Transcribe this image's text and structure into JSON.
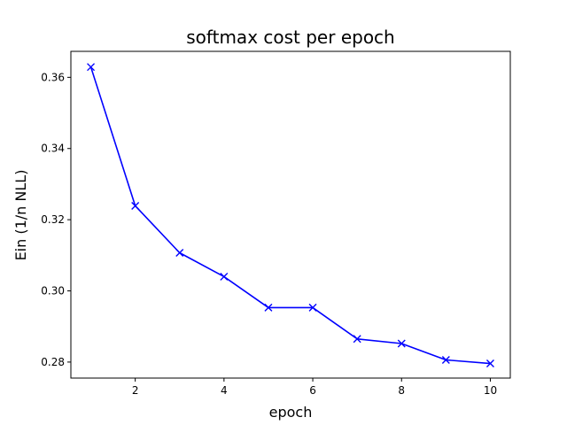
{
  "chart_data": {
    "type": "line",
    "title": "softmax cost per epoch",
    "xlabel": "epoch",
    "ylabel": "Ein (1/n NLL)",
    "xlim": [
      0.55,
      10.45
    ],
    "ylim": [
      0.2755,
      0.3673
    ],
    "xticks": [
      2,
      4,
      6,
      8,
      10
    ],
    "yticks": [
      0.28,
      0.3,
      0.32,
      0.34,
      0.36
    ],
    "xtick_labels": [
      "2",
      "4",
      "6",
      "8",
      "10"
    ],
    "ytick_labels": [
      "0.28",
      "0.30",
      "0.32",
      "0.34",
      "0.36"
    ],
    "grid": false,
    "series": [
      {
        "color": "#0000ff",
        "marker": "x",
        "x": [
          1,
          2,
          3,
          4,
          5,
          6,
          7,
          8,
          9,
          10
        ],
        "values": [
          0.3629,
          0.3239,
          0.3107,
          0.304,
          0.2953,
          0.2953,
          0.2865,
          0.2852,
          0.2806,
          0.2796
        ]
      }
    ]
  }
}
